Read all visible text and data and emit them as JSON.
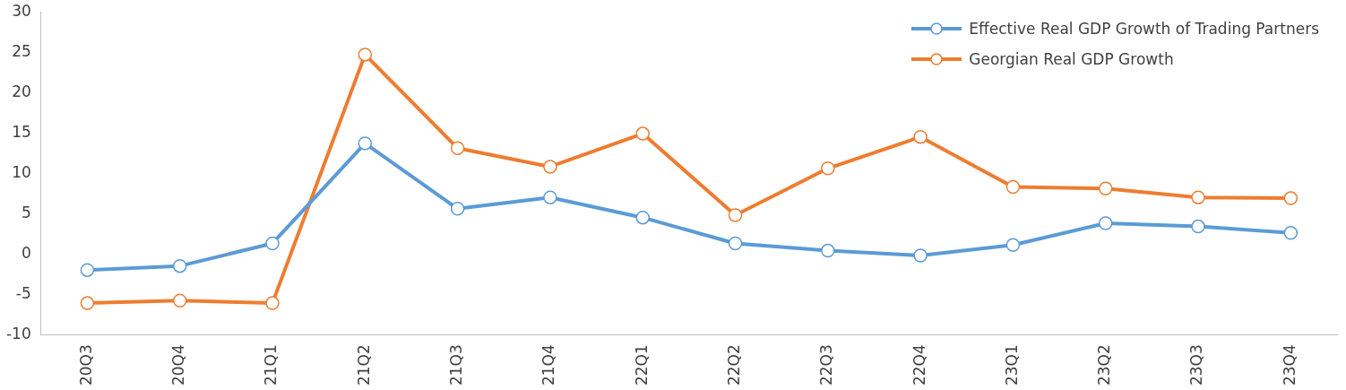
{
  "chart_data": {
    "type": "line",
    "categories": [
      "20Q3",
      "20Q4",
      "21Q1",
      "21Q2",
      "21Q3",
      "21Q4",
      "22Q1",
      "22Q2",
      "22Q3",
      "22Q4",
      "23Q1",
      "23Q2",
      "23Q3",
      "23Q4"
    ],
    "series": [
      {
        "name": "Effective Real GDP Growth of Trading Partners",
        "color": "#5b9bd5",
        "values": [
          -2.0,
          -1.5,
          1.3,
          13.7,
          5.6,
          7.0,
          4.5,
          1.3,
          0.4,
          -0.2,
          1.1,
          3.8,
          3.4,
          2.6
        ]
      },
      {
        "name": "Georgian Real GDP Growth",
        "color": "#ed7d31",
        "values": [
          -6.1,
          -5.8,
          -6.1,
          24.7,
          13.1,
          10.8,
          14.9,
          4.8,
          10.6,
          14.5,
          8.3,
          8.1,
          7.0,
          6.9
        ]
      }
    ],
    "ylim": [
      -10,
      30
    ],
    "yticks": [
      -10,
      -5,
      0,
      5,
      10,
      15,
      20,
      25,
      30
    ],
    "grid": false,
    "legend": "top right",
    "marker": "circle",
    "line_style": "solid"
  }
}
